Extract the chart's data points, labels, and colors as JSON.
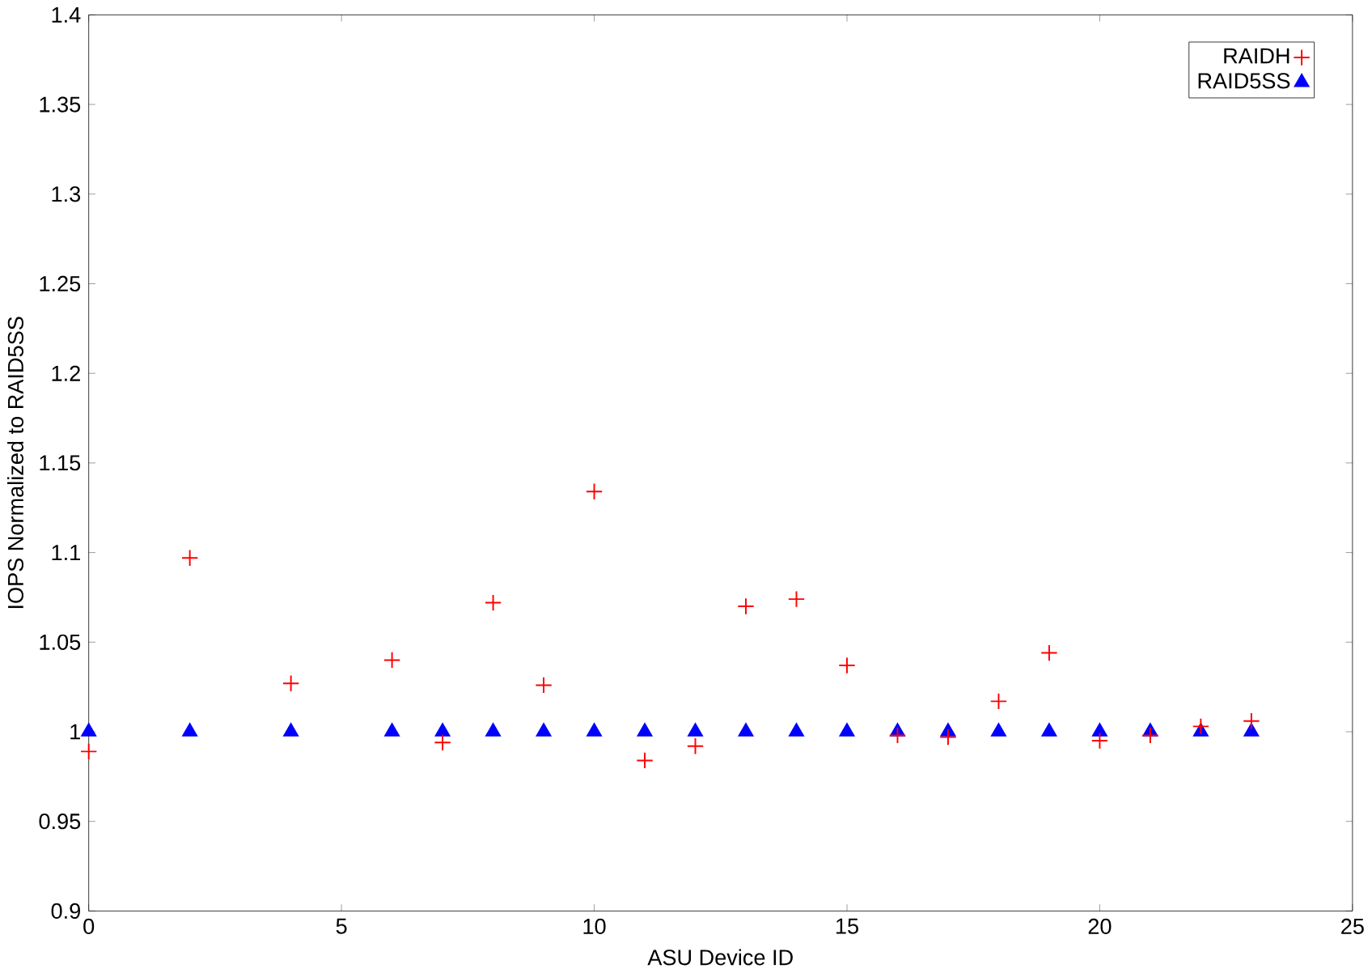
{
  "chart_data": {
    "type": "scatter",
    "xlabel": "ASU Device ID",
    "ylabel": "IOPS Normalized to RAID5SS",
    "x": [
      0,
      2,
      4,
      6,
      7,
      8,
      9,
      10,
      11,
      12,
      13,
      14,
      15,
      16,
      17,
      18,
      19,
      20,
      21,
      22,
      23
    ],
    "series": [
      {
        "name": "RAIDH",
        "color": "#ff0000",
        "marker": "cross",
        "values": [
          0.989,
          1.097,
          1.027,
          1.04,
          0.994,
          1.072,
          1.026,
          1.134,
          0.984,
          0.992,
          1.07,
          1.074,
          1.037,
          0.998,
          0.997,
          1.017,
          1.044,
          0.995,
          0.998,
          1.003,
          1.006
        ]
      },
      {
        "name": "RAID5SS",
        "color": "#0000ff",
        "marker": "triangle",
        "values": [
          1,
          1,
          1,
          1,
          1,
          1,
          1,
          1,
          1,
          1,
          1,
          1,
          1,
          1,
          1,
          1,
          1,
          1,
          1,
          1,
          1
        ]
      }
    ],
    "xlim": [
      0,
      25
    ],
    "ylim": [
      0.9,
      1.4
    ],
    "xticks": [
      0,
      5,
      10,
      15,
      20,
      25
    ],
    "yticks": [
      0.9,
      0.95,
      1,
      1.05,
      1.1,
      1.15,
      1.2,
      1.25,
      1.3,
      1.35,
      1.4
    ],
    "grid": false,
    "legend": "top right"
  }
}
